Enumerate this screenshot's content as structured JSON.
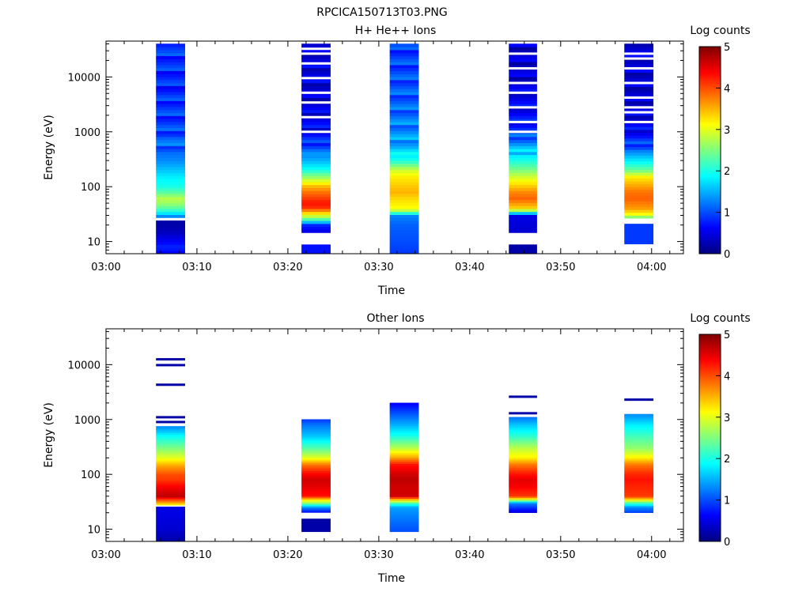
{
  "figure": {
    "title": "RPCICA150713T03.PNG"
  },
  "colors": {
    "jet_stops": [
      "#00007f",
      "#0000ff",
      "#007fff",
      "#00ffff",
      "#7fff7f",
      "#ffff00",
      "#ff7f00",
      "#ff0000",
      "#7f0000"
    ]
  },
  "chart_data": [
    {
      "type": "heatmap",
      "title": "H+ He++ Ions",
      "xlabel": "Time",
      "ylabel": "Energy (eV)",
      "x_ticks": [
        "03:00",
        "03:10",
        "03:20",
        "03:30",
        "03:40",
        "03:50",
        "04:00"
      ],
      "x_range_minutes": [
        0,
        63.5
      ],
      "y_scale": "log",
      "y_range": [
        6,
        45000
      ],
      "y_ticks": [
        "10",
        "100",
        "1000",
        "10000"
      ],
      "colorbar": {
        "label": "Log counts",
        "range": [
          0,
          5
        ],
        "ticks": [
          "0",
          "1",
          "2",
          "3",
          "4",
          "5"
        ]
      },
      "x_axis_label_minutes": "minutes after 03:00",
      "time_blocks": [
        {
          "start": 5.5,
          "end": 8.7,
          "energy_range": [
            6,
            40000
          ],
          "profile": [
            [
              6,
              0.6
            ],
            [
              8,
              0.8
            ],
            [
              10,
              0.6
            ],
            [
              15,
              0.3
            ],
            [
              20,
              0.2
            ],
            [
              25,
              null
            ],
            [
              28,
              1.2
            ],
            [
              35,
              2.0
            ],
            [
              45,
              2.5
            ],
            [
              60,
              2.8
            ],
            [
              80,
              2.3
            ],
            [
              100,
              2.0
            ],
            [
              150,
              1.8
            ],
            [
              200,
              1.6
            ],
            [
              300,
              1.3
            ],
            [
              500,
              1.1
            ],
            [
              800,
              null
            ],
            [
              850,
              1.0
            ],
            [
              1500,
              0.9
            ],
            [
              3000,
              0.9
            ],
            [
              6000,
              0.8
            ],
            [
              15000,
              0.85
            ],
            [
              40000,
              0.9
            ]
          ]
        },
        {
          "start": 21.5,
          "end": 24.7,
          "energy_range": [
            6,
            40000
          ],
          "profile": [
            [
              6,
              0.7
            ],
            [
              9,
              null
            ],
            [
              15,
              0.5
            ],
            [
              20,
              0.8
            ],
            [
              25,
              2.2
            ],
            [
              30,
              3.0
            ],
            [
              35,
              3.5
            ],
            [
              40,
              4.1
            ],
            [
              50,
              4.3
            ],
            [
              60,
              4.1
            ],
            [
              80,
              3.8
            ],
            [
              100,
              3.5
            ],
            [
              150,
              2.6
            ],
            [
              200,
              2.0
            ],
            [
              300,
              1.5
            ],
            [
              500,
              1.1
            ],
            [
              700,
              0.8
            ],
            [
              1000,
              0.6
            ],
            [
              2000,
              0.5
            ],
            [
              5000,
              0.4
            ],
            [
              10000,
              0.5
            ],
            [
              40000,
              0.4
            ]
          ]
        },
        {
          "start": 31.2,
          "end": 34.4,
          "energy_range": [
            6,
            40000
          ],
          "profile": [
            [
              6,
              0.9
            ],
            [
              10,
              1.0
            ],
            [
              20,
              1.1
            ],
            [
              30,
              1.3
            ],
            [
              35,
              2.6
            ],
            [
              40,
              3.1
            ],
            [
              60,
              3.3
            ],
            [
              80,
              3.5
            ],
            [
              100,
              3.4
            ],
            [
              150,
              3.2
            ],
            [
              200,
              2.9
            ],
            [
              300,
              2.0
            ],
            [
              500,
              1.5
            ],
            [
              1000,
              1.3
            ],
            [
              3000,
              1.1
            ],
            [
              10000,
              1.0
            ],
            [
              40000,
              0.9
            ]
          ]
        },
        {
          "start": 44.3,
          "end": 47.4,
          "energy_range": [
            6,
            40000
          ],
          "profile": [
            [
              6,
              0.2
            ],
            [
              9,
              null
            ],
            [
              15,
              0.4
            ],
            [
              30,
              0.5
            ],
            [
              35,
              2.4
            ],
            [
              40,
              3.3
            ],
            [
              60,
              3.9
            ],
            [
              80,
              3.7
            ],
            [
              100,
              3.4
            ],
            [
              150,
              2.9
            ],
            [
              200,
              2.5
            ],
            [
              300,
              2.0
            ],
            [
              500,
              1.5
            ],
            [
              700,
              1.2
            ],
            [
              1000,
              0.9
            ],
            [
              2000,
              0.6
            ],
            [
              5000,
              0.5
            ],
            [
              10000,
              0.4
            ],
            [
              40000,
              0.4
            ]
          ]
        },
        {
          "start": 57.0,
          "end": 60.2,
          "energy_range": [
            9,
            40000
          ],
          "profile": [
            [
              9,
              0.9
            ],
            [
              20,
              null
            ],
            [
              25,
              1.8
            ],
            [
              30,
              3.0
            ],
            [
              40,
              3.6
            ],
            [
              60,
              3.9
            ],
            [
              80,
              3.8
            ],
            [
              100,
              3.6
            ],
            [
              150,
              3.2
            ],
            [
              200,
              2.4
            ],
            [
              300,
              1.8
            ],
            [
              500,
              1.1
            ],
            [
              800,
              0.7
            ],
            [
              1500,
              0.5
            ],
            [
              5000,
              0.4
            ],
            [
              10000,
              0.4
            ],
            [
              40000,
              0.5
            ]
          ]
        }
      ]
    },
    {
      "type": "heatmap",
      "title": "Other Ions",
      "xlabel": "Time",
      "ylabel": "Energy (eV)",
      "x_ticks": [
        "03:00",
        "03:10",
        "03:20",
        "03:30",
        "03:40",
        "03:50",
        "04:00"
      ],
      "x_range_minutes": [
        0,
        63.5
      ],
      "y_scale": "log",
      "y_range": [
        6,
        45000
      ],
      "y_ticks": [
        "10",
        "100",
        "1000",
        "10000"
      ],
      "colorbar": {
        "label": "Log counts",
        "range": [
          0,
          5
        ],
        "ticks": [
          "0",
          "1",
          "2",
          "3",
          "4",
          "5"
        ]
      },
      "time_blocks": [
        {
          "start": 5.5,
          "end": 8.7,
          "energy_range": [
            6,
            750
          ],
          "profile": [
            [
              6,
              0.2
            ],
            [
              10,
              0.4
            ],
            [
              20,
              0.5
            ],
            [
              25,
              null
            ],
            [
              28,
              3.2
            ],
            [
              35,
              4.1
            ],
            [
              40,
              4.7
            ],
            [
              60,
              4.4
            ],
            [
              80,
              4.1
            ],
            [
              100,
              4.0
            ],
            [
              150,
              3.5
            ],
            [
              200,
              3.0
            ],
            [
              300,
              2.5
            ],
            [
              500,
              1.9
            ],
            [
              750,
              1.3
            ]
          ],
          "lines": [
            1100,
            900,
            4300,
            9800,
            12500
          ]
        },
        {
          "start": 21.5,
          "end": 24.7,
          "energy_range": [
            9,
            1000
          ],
          "profile": [
            [
              9,
              0.2
            ],
            [
              15,
              null
            ],
            [
              20,
              0.6
            ],
            [
              25,
              1.3
            ],
            [
              30,
              2.6
            ],
            [
              35,
              3.3
            ],
            [
              40,
              4.3
            ],
            [
              60,
              4.5
            ],
            [
              80,
              4.6
            ],
            [
              100,
              4.4
            ],
            [
              150,
              3.8
            ],
            [
              200,
              3.0
            ],
            [
              300,
              2.3
            ],
            [
              500,
              1.6
            ],
            [
              800,
              1.2
            ],
            [
              1000,
              0.9
            ]
          ]
        },
        {
          "start": 31.2,
          "end": 34.4,
          "energy_range": [
            9,
            2000
          ],
          "profile": [
            [
              9,
              1.0
            ],
            [
              25,
              1.4
            ],
            [
              30,
              2.3
            ],
            [
              35,
              3.5
            ],
            [
              40,
              4.6
            ],
            [
              60,
              4.6
            ],
            [
              80,
              4.7
            ],
            [
              100,
              4.6
            ],
            [
              150,
              4.3
            ],
            [
              200,
              3.6
            ],
            [
              300,
              2.8
            ],
            [
              500,
              2.0
            ],
            [
              800,
              1.5
            ],
            [
              1200,
              1.1
            ],
            [
              2000,
              0.6
            ]
          ]
        },
        {
          "start": 44.3,
          "end": 47.4,
          "energy_range": [
            20,
            1100
          ],
          "profile": [
            [
              20,
              0.4
            ],
            [
              30,
              1.3
            ],
            [
              35,
              3.0
            ],
            [
              40,
              4.1
            ],
            [
              60,
              4.4
            ],
            [
              80,
              4.5
            ],
            [
              100,
              4.3
            ],
            [
              150,
              3.8
            ],
            [
              200,
              3.2
            ],
            [
              300,
              2.8
            ],
            [
              500,
              2.1
            ],
            [
              800,
              1.6
            ],
            [
              1100,
              1.2
            ]
          ],
          "lines": [
            1300,
            2600
          ]
        },
        {
          "start": 57.0,
          "end": 60.2,
          "energy_range": [
            20,
            1250
          ],
          "profile": [
            [
              20,
              0.9
            ],
            [
              25,
              1.3
            ],
            [
              30,
              2.2
            ],
            [
              35,
              3.3
            ],
            [
              40,
              4.1
            ],
            [
              60,
              4.2
            ],
            [
              80,
              4.3
            ],
            [
              100,
              4.2
            ],
            [
              150,
              3.8
            ],
            [
              200,
              3.2
            ],
            [
              300,
              2.6
            ],
            [
              500,
              2.2
            ],
            [
              800,
              1.8
            ],
            [
              1250,
              1.3
            ]
          ],
          "lines": [
            2300
          ]
        }
      ]
    }
  ]
}
